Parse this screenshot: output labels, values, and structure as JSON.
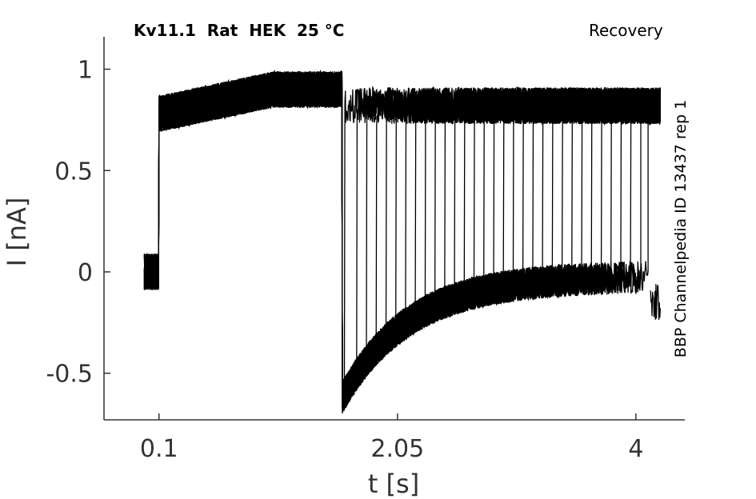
{
  "chart_data": {
    "type": "line",
    "title": "Kv11.1  Rat  HEK  25 °C",
    "subtitle": "Recovery",
    "annotation": "BBP Channelpedia ID 13437 rep 1",
    "xlabel": "t [s]",
    "ylabel": "I [nA]",
    "xlim": [
      -0.35,
      4.4
    ],
    "ylim": [
      -0.73,
      1.16
    ],
    "xticks": [
      {
        "value": 0.1,
        "label": "0.1"
      },
      {
        "value": 2.05,
        "label": "2.05"
      },
      {
        "value": 4,
        "label": "4"
      }
    ],
    "yticks": [
      {
        "value": -0.5,
        "label": "-0.5"
      },
      {
        "value": 0,
        "label": "0"
      },
      {
        "value": 0.5,
        "label": "0.5"
      },
      {
        "value": 1,
        "label": "1"
      }
    ],
    "grid": false,
    "line_color": "#000000",
    "protocol": {
      "baseline_start": -0.02,
      "baseline_end": 0.1,
      "baseline_level": 0.0,
      "step_onset": 0.1,
      "step_end": 1.6,
      "step_level_start": 0.78,
      "step_level_end": 0.9,
      "tail_peak": -0.62,
      "tail_steady": -0.02,
      "tail_time_constant": 0.55,
      "recovery_level": 0.82,
      "sweep_end_times": [
        1.62,
        1.72,
        1.8,
        1.88,
        1.96,
        2.04,
        2.12,
        2.2,
        2.28,
        2.36,
        2.44,
        2.52,
        2.6,
        2.68,
        2.76,
        2.84,
        2.92,
        3.0,
        3.08,
        3.16,
        3.24,
        3.32,
        3.4,
        3.48,
        3.56,
        3.64,
        3.72,
        3.8,
        3.88,
        3.96,
        4.04,
        4.1
      ],
      "end_level": -0.15,
      "trace_end": 4.2,
      "noise_amplitude": 0.09
    }
  }
}
